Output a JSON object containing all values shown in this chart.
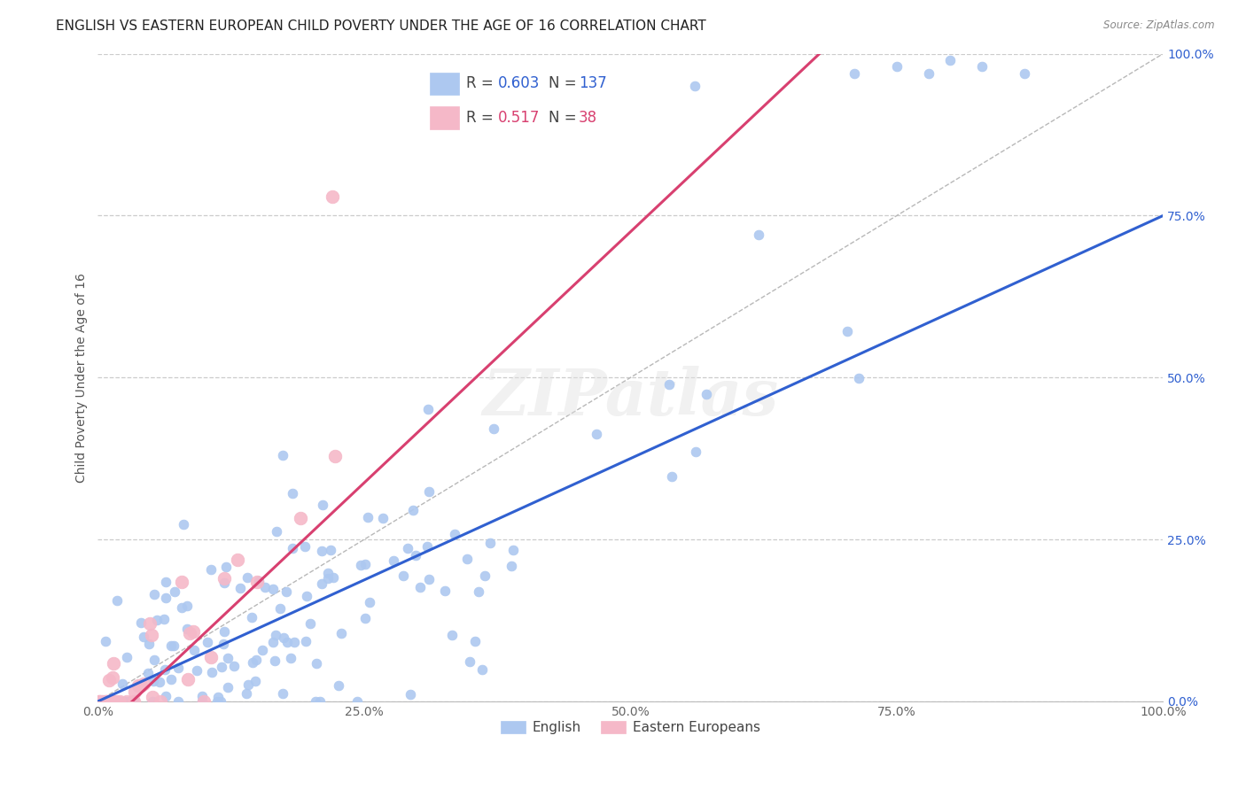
{
  "title": "ENGLISH VS EASTERN EUROPEAN CHILD POVERTY UNDER THE AGE OF 16 CORRELATION CHART",
  "source": "Source: ZipAtlas.com",
  "ylabel": "Child Poverty Under the Age of 16",
  "xlim": [
    0.0,
    1.0
  ],
  "ylim": [
    0.0,
    1.0
  ],
  "xticks": [
    0.0,
    0.25,
    0.5,
    0.75,
    1.0
  ],
  "yticks": [
    0.0,
    0.25,
    0.5,
    0.75,
    1.0
  ],
  "xticklabels": [
    "0.0%",
    "25.0%",
    "50.0%",
    "75.0%",
    "100.0%"
  ],
  "yticklabels": [
    "0.0%",
    "25.0%",
    "50.0%",
    "75.0%",
    "100.0%"
  ],
  "english_color": "#adc8f0",
  "eastern_color": "#f5b8c8",
  "english_R": 0.603,
  "english_N": 137,
  "eastern_R": 0.517,
  "eastern_N": 38,
  "english_line_color": "#3060d0",
  "eastern_line_color": "#d84070",
  "diag_line_color": "#b8b8b8",
  "background_color": "#ffffff",
  "grid_color": "#cccccc",
  "watermark": "ZIPatlas",
  "title_fontsize": 11,
  "axis_label_fontsize": 10,
  "tick_fontsize": 10,
  "legend_fontsize": 12,
  "english_line_intercept": 0.0,
  "english_line_slope": 0.75,
  "eastern_line_intercept": -0.05,
  "eastern_line_slope": 1.55,
  "marker_size": 60,
  "eastern_marker_size": 110,
  "marker_aspect": 0.55
}
